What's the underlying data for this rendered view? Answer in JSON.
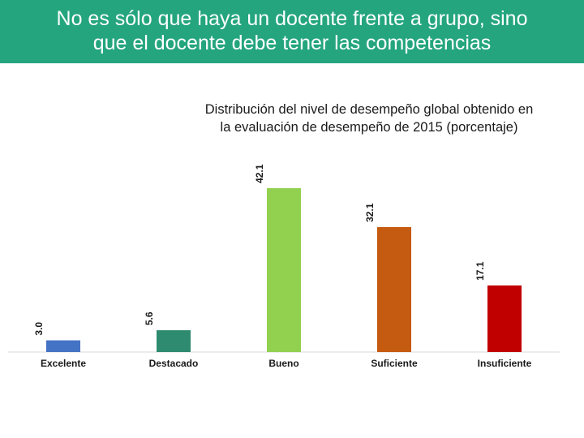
{
  "banner": {
    "line1": "No es sólo que haya un docente frente a grupo, sino",
    "line2": "que el docente debe tener las competencias"
  },
  "chart_data": {
    "type": "bar",
    "title_line1": "Distribución del nivel de desempeño global obtenido en",
    "title_line2": "la evaluación de desempeño de 2015  (porcentaje)",
    "categories": [
      "Excelente",
      "Destacado",
      "Bueno",
      "Suficiente",
      "Insuficiente"
    ],
    "values": [
      3.0,
      5.6,
      42.1,
      32.1,
      17.1
    ],
    "value_labels": [
      "3.0",
      "5.6",
      "42.1",
      "32.1",
      "17.1"
    ],
    "colors": [
      "#4472c4",
      "#2e8b70",
      "#92d050",
      "#c55a11",
      "#c00000"
    ],
    "xlabel": "",
    "ylabel": "",
    "ylim": [
      0,
      45
    ],
    "grid": false,
    "legend": "none"
  }
}
